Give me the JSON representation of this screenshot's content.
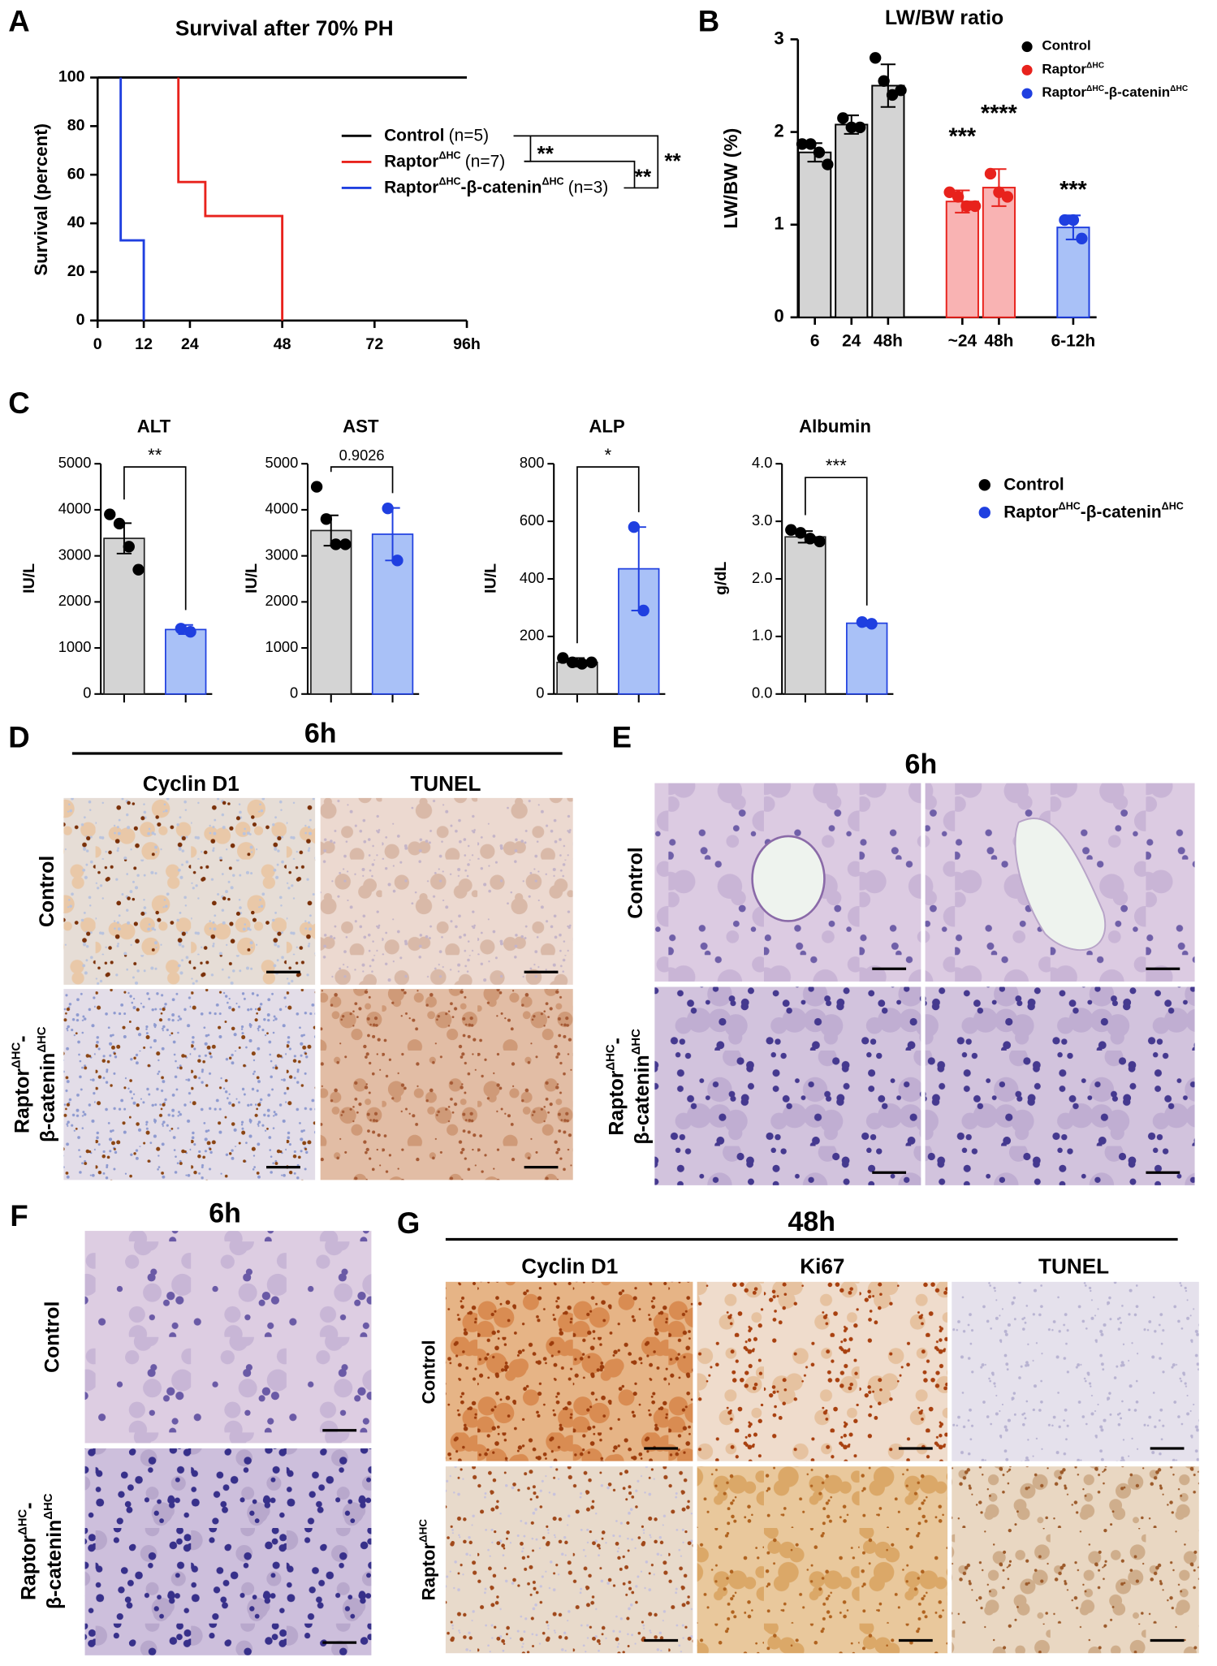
{
  "panel_labels": [
    "A",
    "B",
    "C",
    "D",
    "E",
    "F",
    "G"
  ],
  "chart_data": [
    {
      "type": "line",
      "title": "Survival after 70% PH",
      "y_label": "Survival (percent)",
      "xlim": [
        0,
        96
      ],
      "xticks": [
        0,
        12,
        24,
        48,
        72,
        {
          "value": 96,
          "label": "96h"
        }
      ],
      "ylim": [
        0,
        100
      ],
      "yticks": [
        0,
        20,
        40,
        60,
        80,
        100
      ],
      "series": [
        {
          "name": [
            {
              "t": "Control"
            }
          ],
          "n": "(n=5)",
          "color": "#000000",
          "x": [
            0,
            96
          ],
          "values": [
            100,
            100
          ]
        },
        {
          "name": [
            {
              "t": "Raptor"
            },
            {
              "t": "ΔHC",
              "sup": true
            }
          ],
          "n": "(n=7)",
          "color": "#e8221c",
          "x": [
            21,
            21,
            28,
            28,
            48,
            48
          ],
          "values": [
            100,
            57,
            57,
            43,
            43,
            0
          ]
        },
        {
          "name": [
            {
              "t": "Raptor"
            },
            {
              "t": "ΔHC",
              "sup": true
            },
            {
              "t": "-β-catenin"
            },
            {
              "t": "ΔHC",
              "sup": true
            }
          ],
          "n": "(n=3)",
          "color": "#1f3fe0",
          "x": [
            6,
            6,
            12,
            12
          ],
          "values": [
            100,
            33,
            33,
            0
          ]
        }
      ],
      "annotations": [
        "**",
        "**",
        "**"
      ]
    },
    {
      "type": "bar",
      "title": "LW/BW ratio",
      "y_label": "LW/BW (%)",
      "categories": [
        "6",
        "24",
        "48h",
        "~24",
        "48h",
        "6-12h"
      ],
      "ylim": [
        0,
        3
      ],
      "yticks": [
        0,
        1,
        2,
        3
      ],
      "series": [
        {
          "name": [
            {
              "t": "Control"
            }
          ],
          "color": "#000000",
          "fill": "#d4d4d4",
          "values": [
            1.78,
            2.08,
            2.5,
            null,
            null,
            null
          ],
          "errors": [
            0.1,
            0.1,
            0.23,
            null,
            null,
            null
          ],
          "points": [
            [
              1.87,
              1.87,
              1.78,
              1.65
            ],
            [
              2.15,
              2.05,
              2.05
            ],
            [
              2.8,
              2.55,
              2.4,
              2.45
            ],
            null,
            null,
            null
          ]
        },
        {
          "name": [
            {
              "t": "Raptor"
            },
            {
              "t": "ΔHC",
              "sup": true
            }
          ],
          "color": "#e8221c",
          "fill": "#f9b3b3",
          "values": [
            null,
            null,
            null,
            1.25,
            1.4,
            null
          ],
          "errors": [
            null,
            null,
            null,
            0.12,
            0.2,
            null
          ],
          "points": [
            null,
            null,
            null,
            [
              1.35,
              1.3,
              1.2,
              1.2
            ],
            [
              1.55,
              1.35,
              1.3
            ],
            null
          ]
        },
        {
          "name": [
            {
              "t": "Raptor"
            },
            {
              "t": "ΔHC",
              "sup": true
            },
            {
              "t": "-β-catenin"
            },
            {
              "t": "ΔHC",
              "sup": true
            }
          ],
          "color": "#1f3fe0",
          "fill": "#a9c1f7",
          "values": [
            null,
            null,
            null,
            null,
            null,
            0.97
          ],
          "errors": [
            null,
            null,
            null,
            null,
            null,
            0.13
          ],
          "points": [
            null,
            null,
            null,
            null,
            null,
            [
              1.05,
              1.05,
              0.85
            ]
          ]
        }
      ],
      "annotations": [
        null,
        null,
        null,
        "***",
        "****",
        "***"
      ]
    },
    {
      "type": "bar",
      "title": "ALT",
      "y_label": "IU/L",
      "categories": [
        null,
        null
      ],
      "ylim": [
        0,
        5000
      ],
      "yticks": [
        0,
        1000,
        2000,
        3000,
        4000,
        5000
      ],
      "series": [
        {
          "name": [
            {
              "t": "Control"
            }
          ],
          "color": "#000000",
          "fill": "#d4d4d4",
          "values": [
            3380,
            null
          ],
          "errors": [
            330,
            null
          ],
          "points": [
            [
              3900,
              3700,
              3200,
              2700
            ],
            null
          ]
        },
        {
          "name": [
            {
              "t": "Raptor"
            },
            {
              "t": "ΔHC",
              "sup": true
            },
            {
              "t": "-β-catenin"
            },
            {
              "t": "ΔHC",
              "sup": true
            }
          ],
          "color": "#1f3fe0",
          "fill": "#a9c1f7",
          "values": [
            null,
            1400
          ],
          "errors": [
            null,
            100
          ],
          "points": [
            null,
            [
              1420,
              1350
            ]
          ]
        }
      ],
      "annotation": "**"
    },
    {
      "type": "bar",
      "title": "AST",
      "y_label": "IU/L",
      "categories": [
        null,
        null
      ],
      "ylim": [
        0,
        5000
      ],
      "yticks": [
        0,
        1000,
        2000,
        3000,
        4000,
        5000
      ],
      "series": [
        {
          "color": "#000000",
          "fill": "#d4d4d4",
          "values": [
            3550,
            null
          ],
          "errors": [
            330,
            null
          ],
          "points": [
            [
              4500,
              3800,
              3250,
              3250
            ],
            null
          ]
        },
        {
          "color": "#1f3fe0",
          "fill": "#a9c1f7",
          "values": [
            null,
            3470
          ],
          "errors": [
            null,
            570
          ],
          "points": [
            null,
            [
              4030,
              2900
            ]
          ]
        }
      ],
      "annotation": "0.9026"
    },
    {
      "type": "bar",
      "title": "ALP",
      "y_label": "IU/L",
      "categories": [
        null,
        null
      ],
      "ylim": [
        0,
        800
      ],
      "yticks": [
        0,
        200,
        400,
        600,
        800
      ],
      "series": [
        {
          "color": "#000000",
          "fill": "#d4d4d4",
          "values": [
            110,
            null
          ],
          "errors": [
            15,
            null
          ],
          "points": [
            [
              125,
              110,
              105,
              110
            ],
            null
          ]
        },
        {
          "color": "#1f3fe0",
          "fill": "#a9c1f7",
          "values": [
            null,
            435
          ],
          "errors": [
            null,
            145
          ],
          "points": [
            null,
            [
              580,
              290
            ]
          ]
        }
      ],
      "annotation": "*"
    },
    {
      "type": "bar",
      "title": "Albumin",
      "y_label": "g/dL",
      "categories": [
        null,
        null
      ],
      "ylim": [
        0,
        4
      ],
      "yticks": [
        {
          "value": 0,
          "label": "0.0"
        },
        {
          "value": 1,
          "label": "1.0"
        },
        {
          "value": 2,
          "label": "2.0"
        },
        {
          "value": 3,
          "label": "3.0"
        },
        {
          "value": 4,
          "label": "4.0"
        }
      ],
      "series": [
        {
          "color": "#000000",
          "fill": "#d4d4d4",
          "values": [
            2.73,
            null
          ],
          "errors": [
            0.1,
            null
          ],
          "points": [
            [
              2.85,
              2.8,
              2.7,
              2.65
            ],
            null
          ]
        },
        {
          "color": "#1f3fe0",
          "fill": "#a9c1f7",
          "values": [
            null,
            1.23
          ],
          "errors": [
            null,
            0.05
          ],
          "points": [
            null,
            [
              1.25,
              1.22
            ]
          ]
        }
      ],
      "annotation": "***"
    }
  ],
  "histology": {
    "D": {
      "time": "6h",
      "columns": [
        "Cyclin D1",
        "TUNEL"
      ],
      "rows": [
        [
          [
            {
              "t": "Control"
            }
          ]
        ],
        [
          [
            {
              "t": "Raptor"
            },
            {
              "t": "ΔHC",
              "sup": true
            },
            {
              "t": "-"
            }
          ],
          [
            {
              "t": "β-catenin"
            },
            {
              "t": "ΔHC",
              "sup": true
            }
          ]
        ]
      ]
    },
    "E": {
      "time": "6h",
      "rows": [
        [
          [
            {
              "t": "Control"
            }
          ]
        ],
        [
          [
            {
              "t": "Raptor"
            },
            {
              "t": "ΔHC",
              "sup": true
            },
            {
              "t": "-"
            }
          ],
          [
            {
              "t": "β-catenin"
            },
            {
              "t": "ΔHC",
              "sup": true
            }
          ]
        ]
      ]
    },
    "F": {
      "time": "6h",
      "rows": [
        [
          [
            {
              "t": "Control"
            }
          ]
        ],
        [
          [
            {
              "t": "Raptor"
            },
            {
              "t": "ΔHC",
              "sup": true
            },
            {
              "t": "-"
            }
          ],
          [
            {
              "t": "β-catenin"
            },
            {
              "t": "ΔHC",
              "sup": true
            }
          ]
        ]
      ]
    },
    "G": {
      "time": "48h",
      "columns": [
        "Cyclin D1",
        "Ki67",
        "TUNEL"
      ],
      "rows": [
        [
          [
            {
              "t": "Control"
            }
          ]
        ],
        [
          [
            {
              "t": "Raptor"
            },
            {
              "t": "ΔHC",
              "sup": true
            }
          ]
        ]
      ]
    }
  }
}
